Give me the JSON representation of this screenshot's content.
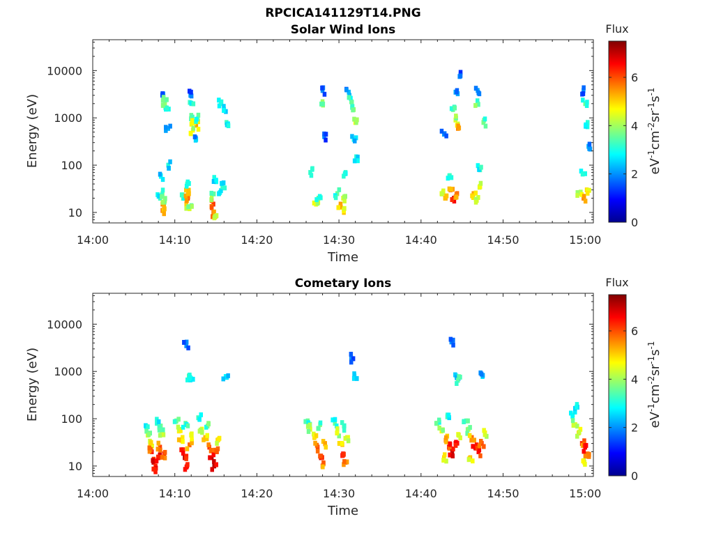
{
  "figure": {
    "title": "RPCICA141129T14.PNG"
  },
  "colormap": [
    "#00008f",
    "#0000ff",
    "#0080ff",
    "#00ffff",
    "#80ff80",
    "#ffff00",
    "#ff8000",
    "#ff0000",
    "#800000"
  ],
  "chart_data": [
    {
      "type": "heatmap",
      "title": "Solar Wind Ions",
      "xlabel": "Time",
      "ylabel": "Energy (eV)",
      "x_ticks": [
        "14:00",
        "14:10",
        "14:20",
        "14:30",
        "14:40",
        "14:50",
        "15:00"
      ],
      "x_range": [
        "14:00",
        "15:01"
      ],
      "y_scale": "log",
      "y_ticks": [
        "10",
        "100",
        "1000",
        "10000"
      ],
      "y_range": [
        6,
        45000
      ],
      "colorbar": {
        "title": "Flux",
        "label": "eV-1cm-2sr-1s-1",
        "ticks": [
          "0",
          "2",
          "4",
          "6"
        ],
        "range": [
          0,
          7.5
        ]
      },
      "cells": [
        {
          "t": "14:08.2",
          "e": 20,
          "flux": 3.2
        },
        {
          "t": "14:08.5",
          "e": 15,
          "flux": 5.6
        },
        {
          "t": "14:08.5",
          "e": 11,
          "flux": 5.8
        },
        {
          "t": "14:08.5",
          "e": 25,
          "flux": 3.9
        },
        {
          "t": "14:08.8",
          "e": 18,
          "flux": 4.5
        },
        {
          "t": "14:08.3",
          "e": 60,
          "flux": 3.0
        },
        {
          "t": "14:08.6",
          "e": 3200,
          "flux": 2.0
        },
        {
          "t": "14:08.8",
          "e": 2300,
          "flux": 4.1
        },
        {
          "t": "14:09.0",
          "e": 1600,
          "flux": 3.6
        },
        {
          "t": "14:08.8",
          "e": 1900,
          "flux": 3.9
        },
        {
          "t": "14:09.2",
          "e": 100,
          "flux": 3.1
        },
        {
          "t": "14:09.2",
          "e": 600,
          "flux": 2.2
        },
        {
          "t": "14:11.0",
          "e": 20,
          "flux": 3.4
        },
        {
          "t": "14:11.4",
          "e": 15,
          "flux": 5.0
        },
        {
          "t": "14:11.6",
          "e": 20,
          "flux": 6.0
        },
        {
          "t": "14:11.6",
          "e": 25,
          "flux": 5.2
        },
        {
          "t": "14:11.8",
          "e": 12,
          "flux": 4.4
        },
        {
          "t": "14:11.5",
          "e": 40,
          "flux": 3.3
        },
        {
          "t": "14:11.9",
          "e": 3000,
          "flux": 2.1
        },
        {
          "t": "14:12.0",
          "e": 2000,
          "flux": 3.4
        },
        {
          "t": "14:12.0",
          "e": 1100,
          "flux": 4.0
        },
        {
          "t": "14:12.3",
          "e": 800,
          "flux": 5.1
        },
        {
          "t": "14:12.6",
          "e": 700,
          "flux": 5.4
        },
        {
          "t": "14:12.2",
          "e": 550,
          "flux": 4.7
        },
        {
          "t": "14:12.8",
          "e": 950,
          "flux": 3.7
        },
        {
          "t": "14:12.6",
          "e": 350,
          "flux": 2.6
        },
        {
          "t": "14:14.7",
          "e": 15,
          "flux": 6.2
        },
        {
          "t": "14:14.7",
          "e": 10,
          "flux": 5.8
        },
        {
          "t": "14:14.5",
          "e": 22,
          "flux": 4.2
        },
        {
          "t": "14:14.9",
          "e": 8,
          "flux": 4.8
        },
        {
          "t": "14:15.4",
          "e": 25,
          "flux": 3.5
        },
        {
          "t": "14:15.8",
          "e": 35,
          "flux": 3.2
        },
        {
          "t": "14:15.6",
          "e": 2000,
          "flux": 3.5
        },
        {
          "t": "14:16.0",
          "e": 1500,
          "flux": 3.0
        },
        {
          "t": "14:16.3",
          "e": 800,
          "flux": 3.3
        },
        {
          "t": "14:14.8",
          "e": 55,
          "flux": 3.0
        },
        {
          "t": "14:27.2",
          "e": 15,
          "flux": 4.6
        },
        {
          "t": "14:27.5",
          "e": 20,
          "flux": 3.6
        },
        {
          "t": "14:28.0",
          "e": 2200,
          "flux": 4.0
        },
        {
          "t": "14:28.0",
          "e": 3800,
          "flux": 2.0
        },
        {
          "t": "14:28.2",
          "e": 400,
          "flux": 2.0
        },
        {
          "t": "14:26.5",
          "e": 70,
          "flux": 3.2
        },
        {
          "t": "14:29.8",
          "e": 25,
          "flux": 3.6
        },
        {
          "t": "14:30.2",
          "e": 15,
          "flux": 5.4
        },
        {
          "t": "14:30.6",
          "e": 10,
          "flux": 5.1
        },
        {
          "t": "14:30.5",
          "e": 20,
          "flux": 4.4
        },
        {
          "t": "14:30.8",
          "e": 70,
          "flux": 3.2
        },
        {
          "t": "14:31.2",
          "e": 3500,
          "flux": 2.3
        },
        {
          "t": "14:31.5",
          "e": 2200,
          "flux": 3.6
        },
        {
          "t": "14:31.8",
          "e": 1500,
          "flux": 3.9
        },
        {
          "t": "14:32.0",
          "e": 800,
          "flux": 4.7
        },
        {
          "t": "14:31.8",
          "e": 350,
          "flux": 2.9
        },
        {
          "t": "14:32.1",
          "e": 150,
          "flux": 3.1
        },
        {
          "t": "14:42.5",
          "e": 25,
          "flux": 4.6
        },
        {
          "t": "14:43.0",
          "e": 20,
          "flux": 5.4
        },
        {
          "t": "14:43.6",
          "e": 30,
          "flux": 5.7
        },
        {
          "t": "14:44.0",
          "e": 20,
          "flux": 6.8
        },
        {
          "t": "14:44.4",
          "e": 25,
          "flux": 5.8
        },
        {
          "t": "14:43.5",
          "e": 60,
          "flux": 3.3
        },
        {
          "t": "14:43.9",
          "e": 1500,
          "flux": 3.6
        },
        {
          "t": "14:44.2",
          "e": 900,
          "flux": 4.4
        },
        {
          "t": "14:44.5",
          "e": 600,
          "flux": 5.6
        },
        {
          "t": "14:44.2",
          "e": 3500,
          "flux": 2.2
        },
        {
          "t": "14:44.7",
          "e": 7500,
          "flux": 2.0
        },
        {
          "t": "14:42.8",
          "e": 450,
          "flux": 2.2
        },
        {
          "t": "14:46.4",
          "e": 25,
          "flux": 5.4
        },
        {
          "t": "14:46.8",
          "e": 18,
          "flux": 4.4
        },
        {
          "t": "14:47.2",
          "e": 35,
          "flux": 5.0
        },
        {
          "t": "14:46.9",
          "e": 2000,
          "flux": 4.0
        },
        {
          "t": "14:46.9",
          "e": 3800,
          "flux": 2.1
        },
        {
          "t": "14:47.6",
          "e": 800,
          "flux": 3.7
        },
        {
          "t": "14:47.2",
          "e": 80,
          "flux": 3.3
        },
        {
          "t": "14:59.3",
          "e": 25,
          "flux": 4.6
        },
        {
          "t": "14:59.8",
          "e": 20,
          "flux": 5.6
        },
        {
          "t": "15:00.2",
          "e": 30,
          "flux": 5.0
        },
        {
          "t": "14:59.7",
          "e": 65,
          "flux": 3.1
        },
        {
          "t": "14:59.8",
          "e": 3800,
          "flux": 2.1
        },
        {
          "t": "15:00.0",
          "e": 2000,
          "flux": 3.6
        },
        {
          "t": "15:00.3",
          "e": 800,
          "flux": 3.1
        },
        {
          "t": "15:00.4",
          "e": 250,
          "flux": 2.3
        }
      ]
    },
    {
      "type": "heatmap",
      "title": "Cometary Ions",
      "xlabel": "Time",
      "ylabel": "Energy (eV)",
      "x_ticks": [
        "14:00",
        "14:10",
        "14:20",
        "14:30",
        "14:40",
        "14:50",
        "15:00"
      ],
      "x_range": [
        "14:00",
        "15:01"
      ],
      "y_scale": "log",
      "y_ticks": [
        "10",
        "100",
        "1000",
        "10000"
      ],
      "y_range": [
        6,
        45000
      ],
      "colorbar": {
        "title": "Flux",
        "label": "eV-1cm-2sr-1s-1",
        "ticks": [
          "0",
          "2",
          "4",
          "6"
        ],
        "range": [
          0,
          7.5
        ]
      },
      "cells": [
        {
          "t": "14:06.5",
          "e": 70,
          "flux": 3.4
        },
        {
          "t": "14:06.7",
          "e": 45,
          "flux": 4.4
        },
        {
          "t": "14:07.0",
          "e": 30,
          "flux": 5.0
        },
        {
          "t": "14:07.2",
          "e": 20,
          "flux": 6.4
        },
        {
          "t": "14:07.4",
          "e": 12,
          "flux": 7.0
        },
        {
          "t": "14:07.7",
          "e": 9,
          "flux": 6.7
        },
        {
          "t": "14:08.0",
          "e": 15,
          "flux": 6.9
        },
        {
          "t": "14:08.2",
          "e": 25,
          "flux": 6.1
        },
        {
          "t": "14:08.5",
          "e": 50,
          "flux": 4.6
        },
        {
          "t": "14:08.7",
          "e": 18,
          "flux": 6.4
        },
        {
          "t": "14:08.3",
          "e": 70,
          "flux": 3.6
        },
        {
          "t": "14:07.8",
          "e": 80,
          "flux": 3.2
        },
        {
          "t": "14:10.2",
          "e": 90,
          "flux": 3.8
        },
        {
          "t": "14:10.5",
          "e": 55,
          "flux": 4.8
        },
        {
          "t": "14:10.8",
          "e": 35,
          "flux": 5.2
        },
        {
          "t": "14:11.0",
          "e": 22,
          "flux": 6.6
        },
        {
          "t": "14:11.2",
          "e": 15,
          "flux": 7.0
        },
        {
          "t": "14:11.5",
          "e": 10,
          "flux": 6.5
        },
        {
          "t": "14:11.8",
          "e": 28,
          "flux": 5.8
        },
        {
          "t": "14:12.0",
          "e": 45,
          "flux": 5.0
        },
        {
          "t": "14:11.3",
          "e": 80,
          "flux": 3.5
        },
        {
          "t": "14:11.7",
          "e": 800,
          "flux": 3.4
        },
        {
          "t": "14:12.0",
          "e": 700,
          "flux": 3.0
        },
        {
          "t": "14:11.4",
          "e": 3500,
          "flux": 2.0
        },
        {
          "t": "14:13.0",
          "e": 100,
          "flux": 3.6
        },
        {
          "t": "14:13.3",
          "e": 60,
          "flux": 4.6
        },
        {
          "t": "14:13.7",
          "e": 40,
          "flux": 5.2
        },
        {
          "t": "14:14.2",
          "e": 25,
          "flux": 6.2
        },
        {
          "t": "14:14.5",
          "e": 15,
          "flux": 7.1
        },
        {
          "t": "14:14.8",
          "e": 10,
          "flux": 7.2
        },
        {
          "t": "14:15.0",
          "e": 20,
          "flux": 6.5
        },
        {
          "t": "14:15.2",
          "e": 35,
          "flux": 5.0
        },
        {
          "t": "14:14.0",
          "e": 70,
          "flux": 3.8
        },
        {
          "t": "14:16.2",
          "e": 780,
          "flux": 2.8
        },
        {
          "t": "14:26.2",
          "e": 90,
          "flux": 3.6
        },
        {
          "t": "14:26.5",
          "e": 60,
          "flux": 4.4
        },
        {
          "t": "14:27.0",
          "e": 40,
          "flux": 5.0
        },
        {
          "t": "14:27.4",
          "e": 25,
          "flux": 6.2
        },
        {
          "t": "14:27.8",
          "e": 15,
          "flux": 6.8
        },
        {
          "t": "14:28.0",
          "e": 10,
          "flux": 6.0
        },
        {
          "t": "14:28.3",
          "e": 30,
          "flux": 5.4
        },
        {
          "t": "14:27.7",
          "e": 75,
          "flux": 3.8
        },
        {
          "t": "14:29.5",
          "e": 80,
          "flux": 3.6
        },
        {
          "t": "14:29.8",
          "e": 50,
          "flux": 4.6
        },
        {
          "t": "14:30.2",
          "e": 30,
          "flux": 5.6
        },
        {
          "t": "14:30.5",
          "e": 18,
          "flux": 6.6
        },
        {
          "t": "14:30.8",
          "e": 12,
          "flux": 6.2
        },
        {
          "t": "14:31.0",
          "e": 40,
          "flux": 4.8
        },
        {
          "t": "14:30.6",
          "e": 70,
          "flux": 3.6
        },
        {
          "t": "14:31.5",
          "e": 1900,
          "flux": 2.0
        },
        {
          "t": "14:31.9",
          "e": 800,
          "flux": 2.7
        },
        {
          "t": "14:42.0",
          "e": 80,
          "flux": 3.8
        },
        {
          "t": "14:42.5",
          "e": 55,
          "flux": 4.6
        },
        {
          "t": "14:43.0",
          "e": 35,
          "flux": 5.6
        },
        {
          "t": "14:43.4",
          "e": 25,
          "flux": 6.6
        },
        {
          "t": "14:43.8",
          "e": 20,
          "flux": 7.0
        },
        {
          "t": "14:44.2",
          "e": 30,
          "flux": 6.6
        },
        {
          "t": "14:44.6",
          "e": 45,
          "flux": 5.2
        },
        {
          "t": "14:42.8",
          "e": 15,
          "flux": 5.0
        },
        {
          "t": "14:43.2",
          "e": 110,
          "flux": 3.3
        },
        {
          "t": "14:43.7",
          "e": 4200,
          "flux": 2.0
        },
        {
          "t": "14:44.3",
          "e": 800,
          "flux": 3.0
        },
        {
          "t": "14:44.5",
          "e": 650,
          "flux": 3.5
        },
        {
          "t": "14:45.5",
          "e": 90,
          "flux": 3.6
        },
        {
          "t": "14:45.8",
          "e": 60,
          "flux": 4.4
        },
        {
          "t": "14:46.2",
          "e": 40,
          "flux": 5.8
        },
        {
          "t": "14:46.6",
          "e": 25,
          "flux": 6.8
        },
        {
          "t": "14:47.0",
          "e": 20,
          "flux": 6.6
        },
        {
          "t": "14:47.4",
          "e": 30,
          "flux": 6.2
        },
        {
          "t": "14:47.8",
          "e": 50,
          "flux": 4.8
        },
        {
          "t": "14:46.0",
          "e": 15,
          "flux": 5.2
        },
        {
          "t": "14:47.5",
          "e": 780,
          "flux": 2.7
        },
        {
          "t": "14:58.5",
          "e": 120,
          "flux": 3.5
        },
        {
          "t": "14:58.8",
          "e": 75,
          "flux": 4.4
        },
        {
          "t": "14:59.2",
          "e": 50,
          "flux": 5.0
        },
        {
          "t": "14:59.6",
          "e": 30,
          "flux": 6.2
        },
        {
          "t": "15:00.0",
          "e": 25,
          "flux": 6.6
        },
        {
          "t": "15:00.3",
          "e": 18,
          "flux": 5.8
        },
        {
          "t": "14:59.9",
          "e": 12,
          "flux": 4.8
        },
        {
          "t": "14:59.0",
          "e": 200,
          "flux": 3.0
        }
      ]
    }
  ]
}
